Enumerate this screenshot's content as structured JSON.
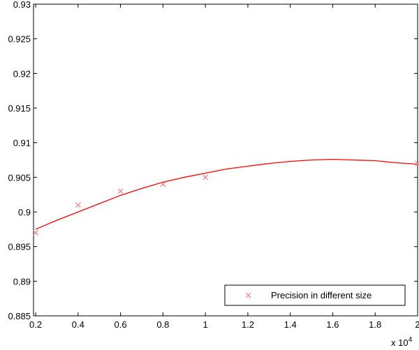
{
  "chart_data": {
    "type": "scatter",
    "title": "",
    "xlabel": "",
    "ylabel": "",
    "xlim": [
      0.19,
      2.0
    ],
    "ylim": [
      0.885,
      0.93
    ],
    "x_multiplier": "x 10",
    "x_multiplier_exp": "4",
    "x_ticks": [
      "0.2",
      "0.4",
      "0.6",
      "0.8",
      "1",
      "1.2",
      "1.4",
      "1.6",
      "1.8",
      "2"
    ],
    "y_ticks": [
      "0.885",
      "0.89",
      "0.895",
      "0.9",
      "0.905",
      "0.91",
      "0.915",
      "0.92",
      "0.925",
      "0.93"
    ],
    "grid": false,
    "legend_position": "bottom-right",
    "series": [
      {
        "name": "Precision in different size",
        "marker": "x",
        "color": "#f08080",
        "x": [
          0.2,
          0.4,
          0.6,
          0.8,
          1.0,
          2.0
        ],
        "y": [
          0.897,
          0.901,
          0.903,
          0.904,
          0.905,
          0.907
        ]
      }
    ],
    "fit_curve": {
      "color": "#ff0000",
      "x": [
        0.2,
        0.3,
        0.4,
        0.5,
        0.6,
        0.7,
        0.8,
        0.9,
        1.0,
        1.1,
        1.2,
        1.3,
        1.4,
        1.5,
        1.6,
        1.7,
        1.8,
        1.9,
        2.0
      ],
      "y": [
        0.8975,
        0.8988,
        0.9,
        0.9012,
        0.9024,
        0.9034,
        0.9043,
        0.905,
        0.9056,
        0.9062,
        0.9066,
        0.907,
        0.9073,
        0.9075,
        0.9076,
        0.9075,
        0.9074,
        0.9071,
        0.9069
      ]
    }
  }
}
